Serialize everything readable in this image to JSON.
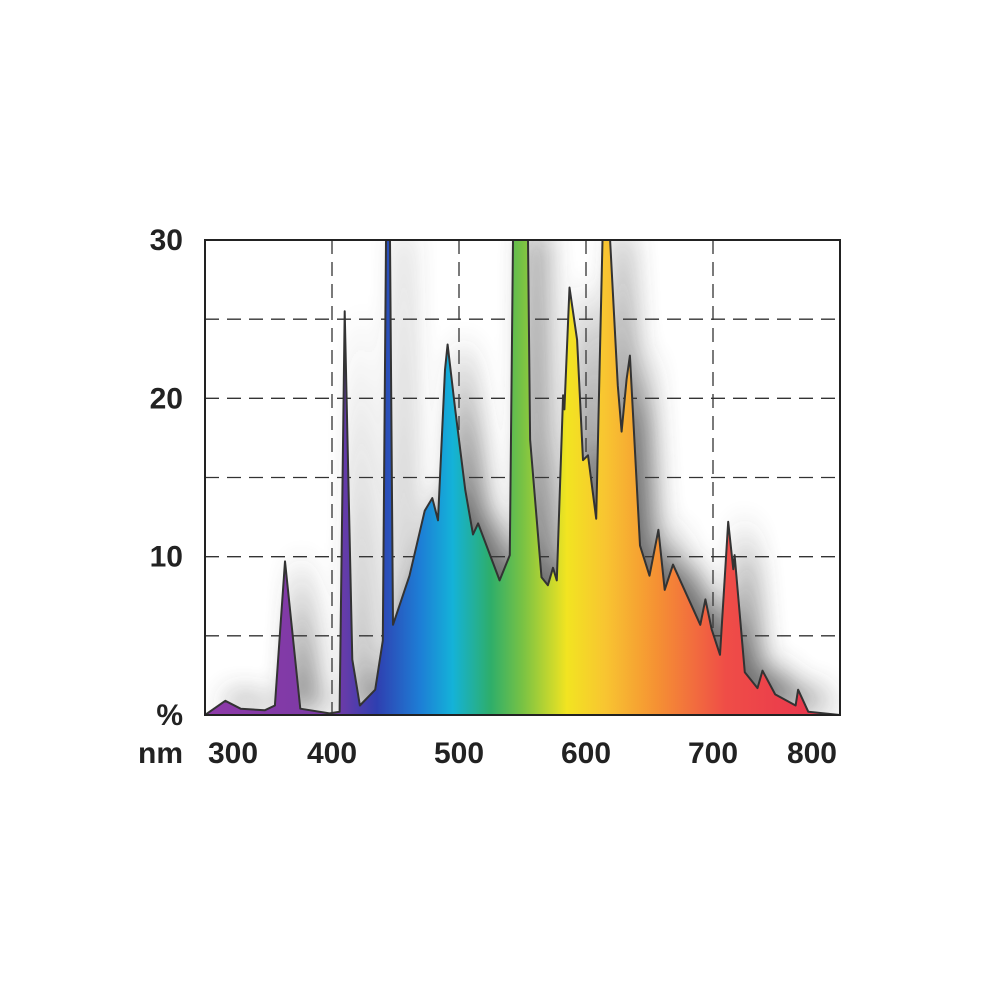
{
  "chart_data": {
    "type": "area",
    "x_label": "nm",
    "x": [
      300,
      316,
      328,
      347,
      355,
      363,
      375,
      398,
      406,
      410,
      416,
      422,
      434,
      440,
      442.5,
      445.7,
      448,
      461,
      473,
      479,
      483.5,
      489,
      491,
      497,
      505,
      511,
      515,
      532,
      540,
      542.5,
      554.3,
      556,
      565,
      570,
      574,
      577,
      582,
      583,
      587,
      593,
      597.6,
      601.6,
      608,
      613,
      619,
      625,
      628,
      632,
      634.6,
      642.5,
      650,
      657,
      662,
      668.5,
      690,
      694,
      699,
      705.5,
      712,
      716,
      717,
      725,
      735,
      739,
      749,
      765,
      767,
      775,
      800
    ],
    "values": [
      0,
      0.9,
      0.4,
      0.3,
      0.6,
      9.7,
      0.4,
      0.1,
      0.2,
      25.5,
      3.5,
      0.6,
      1.6,
      4.7,
      30,
      30,
      5.7,
      8.8,
      12.9,
      13.7,
      12.3,
      21.8,
      23.4,
      19.3,
      14.2,
      11.4,
      12.1,
      8.5,
      10.1,
      30,
      30,
      17.4,
      8.7,
      8.2,
      9.3,
      8.5,
      20.2,
      19.3,
      27,
      23.7,
      16.1,
      16.4,
      12.4,
      30,
      30,
      20.8,
      17.9,
      21.2,
      22.7,
      10.7,
      8.8,
      11.7,
      7.9,
      9.5,
      5.7,
      7.3,
      5.4,
      3.8,
      12.2,
      9.2,
      10.1,
      2.7,
      1.7,
      2.8,
      1.3,
      0.6,
      1.6,
      0.2,
      0
    ],
    "xlim": [
      300,
      800
    ],
    "xticks": [
      300,
      400,
      500,
      600,
      700,
      800
    ],
    "xgrid": [
      400,
      500,
      600,
      700
    ],
    "ylim": [
      0,
      30
    ],
    "yticks": [
      {
        "value": 0,
        "label": "%"
      },
      10,
      20,
      30
    ],
    "ygrid": [
      5,
      10,
      15,
      20,
      25
    ],
    "outline_color": "#333333"
  }
}
